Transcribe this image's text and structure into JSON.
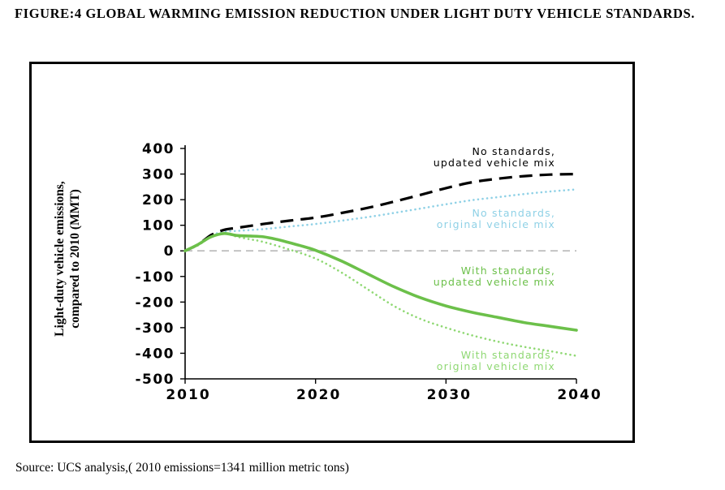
{
  "figure_title": "FIGURE:4 GLOBAL WARMING EMISSION REDUCTION UNDER LIGHT DUTY VEHICLE STANDARDS.",
  "source_note": "Source: UCS analysis,( 2010 emissions=1341 million metric tons)",
  "colors": {
    "no_std_updated": "#000000",
    "no_std_original": "#8fd1e6",
    "with_std_updated": "#6cc04a",
    "with_std_original": "#8fd873",
    "zero_line": "#b8b8b8"
  },
  "chart_data": {
    "type": "line",
    "ylabel_lines": [
      "Light-duty vehicle emissions,",
      "compared to 2010 (MMT)"
    ],
    "xlabel": "",
    "xlim": [
      2010,
      2040
    ],
    "ylim": [
      -500,
      400
    ],
    "x_ticks": [
      2010,
      2020,
      2030,
      2040
    ],
    "y_ticks": [
      400,
      300,
      200,
      100,
      0,
      -100,
      -200,
      -300,
      -400,
      -500
    ],
    "y_tick_labels": [
      "400",
      "300",
      "200",
      "100",
      "0",
      "-100",
      "-200",
      "-300",
      "-400",
      "-500"
    ],
    "baseline": 0,
    "series": [
      {
        "key": "no_std_updated",
        "label_lines": [
          "No standards,",
          "updated vehicle mix"
        ],
        "style": "long-dash",
        "x": [
          2010,
          2011,
          2012,
          2013,
          2014,
          2016,
          2018,
          2020,
          2022,
          2024,
          2026,
          2028,
          2030,
          2032,
          2034,
          2036,
          2038,
          2040
        ],
        "y": [
          0,
          25,
          62,
          82,
          90,
          105,
          118,
          130,
          148,
          168,
          192,
          218,
          245,
          268,
          282,
          292,
          298,
          300
        ]
      },
      {
        "key": "no_std_original",
        "label_lines": [
          "No standards,",
          "original vehicle mix"
        ],
        "style": "dotted",
        "x": [
          2010,
          2011,
          2012,
          2013,
          2014,
          2016,
          2018,
          2020,
          2022,
          2024,
          2026,
          2028,
          2030,
          2032,
          2034,
          2036,
          2038,
          2040
        ],
        "y": [
          0,
          25,
          60,
          75,
          78,
          85,
          95,
          105,
          118,
          132,
          148,
          165,
          182,
          198,
          210,
          222,
          232,
          240
        ]
      },
      {
        "key": "with_std_updated",
        "label_lines": [
          "With standards,",
          "updated vehicle mix"
        ],
        "style": "solid",
        "x": [
          2010,
          2011,
          2012,
          2013,
          2014,
          2015,
          2016,
          2017,
          2018,
          2019,
          2020,
          2022,
          2024,
          2026,
          2028,
          2030,
          2032,
          2034,
          2036,
          2038,
          2040
        ],
        "y": [
          0,
          25,
          55,
          68,
          60,
          58,
          55,
          45,
          32,
          18,
          2,
          -40,
          -90,
          -140,
          -182,
          -215,
          -240,
          -260,
          -280,
          -295,
          -310
        ]
      },
      {
        "key": "with_std_original",
        "label_lines": [
          "With standards,",
          "original vehicle mix"
        ],
        "style": "dotted",
        "x": [
          2010,
          2011,
          2012,
          2013,
          2014,
          2015,
          2016,
          2018,
          2020,
          2022,
          2024,
          2026,
          2028,
          2030,
          2032,
          2034,
          2036,
          2038,
          2040
        ],
        "y": [
          0,
          22,
          55,
          68,
          55,
          45,
          35,
          5,
          -30,
          -85,
          -150,
          -215,
          -265,
          -300,
          -330,
          -355,
          -375,
          -392,
          -410
        ]
      }
    ]
  }
}
